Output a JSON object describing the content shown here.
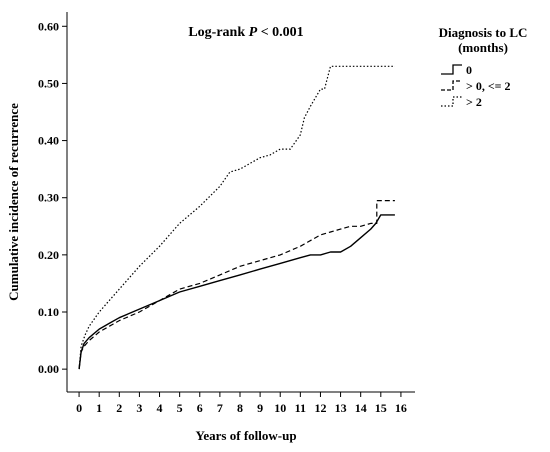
{
  "chart_data": {
    "type": "line",
    "annotation": {
      "prefix": "Log-rank ",
      "p": "P",
      "suffix": " < 0.001"
    },
    "xlabel": "Years of follow-up",
    "ylabel": "Cumulative incidence of recurrence",
    "xlim": [
      -0.6,
      16.7
    ],
    "ylim": [
      -0.04,
      0.625
    ],
    "xticks": [
      0,
      1,
      2,
      3,
      4,
      5,
      6,
      7,
      8,
      9,
      10,
      11,
      12,
      13,
      14,
      15,
      16
    ],
    "xtick_labels": [
      "0",
      "1",
      "2",
      "3",
      "4",
      "5",
      "6",
      "7",
      "8",
      "9",
      "10",
      "11",
      "12",
      "13",
      "14",
      "15",
      "16"
    ],
    "yticks": [
      0,
      0.1,
      0.2,
      0.3,
      0.4,
      0.5,
      0.6
    ],
    "ytick_labels": [
      "0.00",
      "0.10",
      "0.20",
      "0.30",
      "0.40",
      "0.50",
      "0.60"
    ],
    "legend": {
      "title_lines": [
        "Diagnosis to LC",
        "(months)"
      ],
      "placement": "right"
    },
    "series": [
      {
        "name": "0",
        "style": "solid",
        "color": "#000000",
        "x": [
          0,
          0.1,
          0.25,
          0.5,
          1,
          1.5,
          2,
          3,
          4,
          5,
          6,
          7,
          8,
          9,
          10,
          11,
          11.5,
          12,
          12.5,
          13,
          13.5,
          14,
          14.5,
          14.75,
          15,
          15.7
        ],
        "y": [
          0,
          0.03,
          0.045,
          0.055,
          0.07,
          0.08,
          0.09,
          0.105,
          0.12,
          0.135,
          0.145,
          0.155,
          0.165,
          0.175,
          0.185,
          0.195,
          0.2,
          0.2,
          0.205,
          0.205,
          0.215,
          0.23,
          0.245,
          0.255,
          0.27,
          0.27
        ]
      },
      {
        "name": "> 0, <= 2",
        "style": "dashed",
        "color": "#000000",
        "x": [
          0,
          0.1,
          0.25,
          0.5,
          1,
          2,
          3,
          4,
          5,
          6,
          7,
          8,
          9,
          10,
          11,
          12,
          12.5,
          13,
          13.5,
          14,
          14.5,
          14.8,
          14.8,
          15.7
        ],
        "y": [
          0,
          0.03,
          0.04,
          0.05,
          0.065,
          0.085,
          0.1,
          0.12,
          0.14,
          0.15,
          0.165,
          0.18,
          0.19,
          0.2,
          0.215,
          0.235,
          0.24,
          0.245,
          0.25,
          0.25,
          0.255,
          0.255,
          0.295,
          0.295
        ]
      },
      {
        "name": "> 2",
        "style": "dotted",
        "color": "#000000",
        "x": [
          0,
          0.1,
          0.3,
          0.5,
          1,
          1.5,
          2,
          3,
          4,
          5,
          6,
          7,
          7.5,
          8,
          9,
          9.5,
          10,
          10.5,
          11,
          11.2,
          11.5,
          12,
          12.2,
          12.5,
          13,
          14,
          15,
          15.7
        ],
        "y": [
          0,
          0.04,
          0.06,
          0.075,
          0.1,
          0.12,
          0.14,
          0.18,
          0.215,
          0.255,
          0.285,
          0.32,
          0.345,
          0.35,
          0.37,
          0.375,
          0.385,
          0.385,
          0.41,
          0.44,
          0.46,
          0.49,
          0.49,
          0.53,
          0.53,
          0.53,
          0.53,
          0.53
        ]
      }
    ]
  }
}
